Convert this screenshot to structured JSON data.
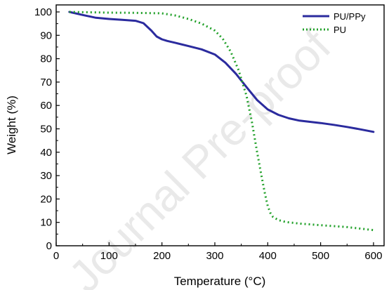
{
  "chart_data": {
    "type": "line",
    "title": "",
    "xlabel": "Temperature (°C)",
    "ylabel": "Weight (%)",
    "xlim": [
      0,
      620
    ],
    "ylim": [
      0,
      103
    ],
    "xticks": [
      0,
      100,
      200,
      300,
      400,
      500,
      600
    ],
    "yticks": [
      0,
      10,
      20,
      30,
      40,
      50,
      60,
      70,
      80,
      90,
      100
    ],
    "grid": false,
    "legend_position": "top-right",
    "watermark": "Journal Pre-proof",
    "series": [
      {
        "name": "PU/PPy",
        "color": "#2b2b9e",
        "style": "solid",
        "x": [
          25,
          50,
          75,
          100,
          125,
          150,
          165,
          180,
          190,
          200,
          210,
          225,
          250,
          275,
          300,
          320,
          340,
          360,
          380,
          400,
          420,
          440,
          460,
          480,
          500,
          525,
          550,
          575,
          600
        ],
        "y": [
          100,
          98.7,
          97.5,
          97,
          96.6,
          96.2,
          95.2,
          92,
          89.5,
          88.3,
          87.6,
          86.8,
          85.4,
          84,
          81.8,
          78.3,
          73.5,
          67.8,
          62.3,
          58.3,
          56,
          54.5,
          53.5,
          53,
          52.5,
          51.7,
          50.8,
          49.8,
          48.7
        ]
      },
      {
        "name": "PU",
        "color": "#22a12a",
        "style": "dotted",
        "x": [
          25,
          100,
          150,
          200,
          225,
          250,
          275,
          300,
          315,
          330,
          345,
          360,
          370,
          380,
          388,
          395,
          400,
          405,
          410,
          420,
          430,
          440,
          460,
          500,
          550,
          600
        ],
        "y": [
          100,
          99.7,
          99.6,
          99.4,
          98.5,
          97,
          95,
          92,
          88.5,
          83,
          75,
          64,
          53,
          40,
          30,
          22,
          17,
          14,
          12.3,
          11,
          10.4,
          10,
          9.5,
          8.8,
          8,
          6.7
        ]
      }
    ]
  }
}
